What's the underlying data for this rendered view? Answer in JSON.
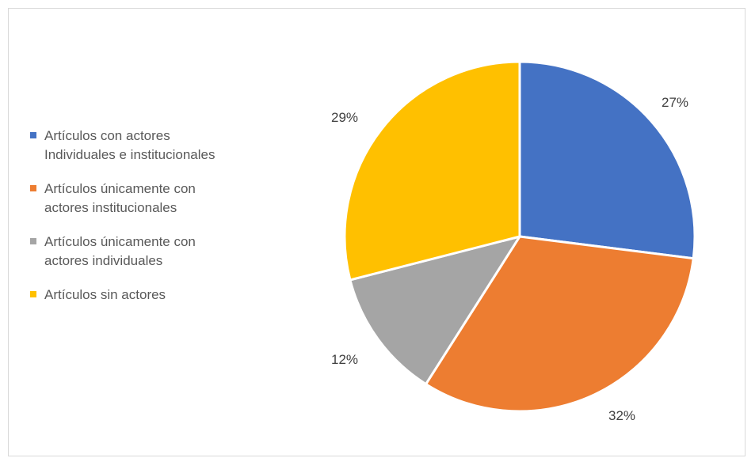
{
  "chart_data": {
    "type": "pie",
    "categories": [
      "Artículos con actores\nIndividuales e institucionales",
      "Artículos únicamente con\nactores institucionales",
      "Artículos únicamente con\nactores individuales",
      "Artículos sin actores"
    ],
    "values": [
      27,
      32,
      12,
      29
    ],
    "data_labels": [
      "27%",
      "32%",
      "12%",
      "29%"
    ],
    "colors": [
      "#4472c4",
      "#ed7d31",
      "#a5a5a5",
      "#ffc000"
    ],
    "legend_position": "left",
    "start_angle_deg": 0,
    "direction": "clockwise"
  }
}
